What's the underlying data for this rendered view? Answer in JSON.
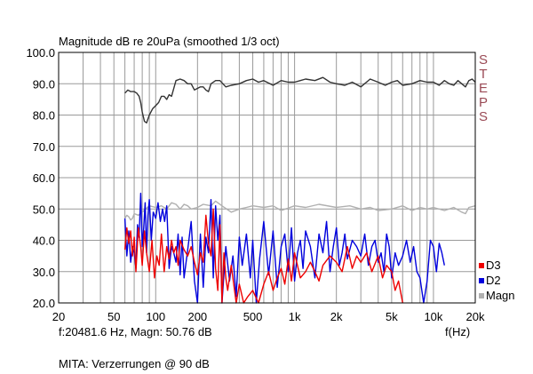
{
  "chart_data": {
    "type": "line",
    "title": "Magnitude dB re 20uPa (smoothed  1/3 oct)",
    "xlabel": "f(Hz)",
    "xscale": "log",
    "xlim": [
      20,
      20000
    ],
    "ylim": [
      20,
      100
    ],
    "grid": true,
    "x_ticks": [
      {
        "value": 20,
        "label": "20"
      },
      {
        "value": 50,
        "label": "50"
      },
      {
        "value": 100,
        "label": "100"
      },
      {
        "value": 200,
        "label": "200"
      },
      {
        "value": 500,
        "label": "500"
      },
      {
        "value": 1000,
        "label": "1k"
      },
      {
        "value": 2000,
        "label": "2k"
      },
      {
        "value": 5000,
        "label": "5k"
      },
      {
        "value": 10000,
        "label": "10k"
      },
      {
        "value": 20000,
        "label": "20k"
      }
    ],
    "y_ticks": [
      {
        "value": 100,
        "label": "100.0"
      },
      {
        "value": 90,
        "label": "90.0"
      },
      {
        "value": 80,
        "label": "80.0"
      },
      {
        "value": 70,
        "label": "70.0"
      },
      {
        "value": 60,
        "label": "60.0"
      },
      {
        "value": 50,
        "label": "50.0"
      },
      {
        "value": 40,
        "label": "40.0"
      },
      {
        "value": 30,
        "label": "30.0"
      },
      {
        "value": 20,
        "label": "20.0"
      }
    ],
    "legend_position": "right-bottom",
    "series": [
      {
        "name": "Magnitude",
        "color": "#333333",
        "x": [
          60,
          63,
          66,
          70,
          73,
          76,
          78,
          80,
          83,
          86,
          90,
          95,
          100,
          105,
          110,
          115,
          120,
          125,
          130,
          140,
          150,
          160,
          170,
          180,
          190,
          200,
          210,
          220,
          230,
          240,
          250,
          270,
          290,
          320,
          350,
          400,
          450,
          500,
          550,
          600,
          700,
          800,
          900,
          1000,
          1100,
          1200,
          1400,
          1600,
          1800,
          2000,
          2300,
          2600,
          3000,
          3500,
          4000,
          4500,
          5000,
          5500,
          6000,
          7000,
          8000,
          9000,
          10000,
          11000,
          12000,
          13000,
          14000,
          15000,
          16000,
          17000,
          18000,
          19000,
          20000
        ],
        "values": [
          87,
          88,
          87.5,
          87.5,
          87,
          86,
          84,
          81,
          78,
          77.5,
          80,
          82,
          83,
          84,
          86,
          86,
          85,
          86.5,
          86,
          91,
          91.5,
          91,
          90,
          90,
          88,
          88.5,
          89,
          89,
          88,
          87.5,
          90,
          91,
          91,
          89,
          89.5,
          90,
          91,
          91.5,
          90.5,
          91,
          89.5,
          91,
          90.5,
          90.5,
          91,
          91.5,
          91,
          92,
          90.5,
          90,
          89.5,
          90.5,
          89,
          91.5,
          90.5,
          89.5,
          90.5,
          91,
          89.5,
          90,
          91,
          90.5,
          90.5,
          89.5,
          91,
          90,
          89.5,
          91,
          90,
          89,
          91,
          91.5,
          90.5
        ]
      },
      {
        "name": "Magn",
        "color": "#b0b0b0",
        "x": [
          60,
          62,
          64,
          66,
          68,
          70,
          75,
          80,
          90,
          100,
          110,
          120,
          130,
          140,
          150,
          160,
          170,
          180,
          200,
          220,
          250,
          270,
          300,
          350,
          400,
          450,
          500,
          600,
          700,
          800,
          1000,
          1200,
          1500,
          2000,
          2500,
          3000,
          3500,
          4000,
          5000,
          6000,
          7000,
          8000,
          9000,
          10000,
          12000,
          14000,
          16000,
          17000,
          18000,
          20000
        ],
        "values": [
          47,
          48,
          47.5,
          46.5,
          47,
          48.5,
          48,
          49,
          51,
          50.5,
          51,
          50,
          52,
          51.5,
          50,
          51.5,
          51,
          50,
          50.5,
          51.5,
          51,
          52.5,
          51,
          49,
          50,
          50.5,
          51,
          50.5,
          51,
          49.5,
          51,
          50.5,
          51.5,
          50.5,
          51,
          50,
          50.5,
          49.5,
          50,
          51,
          49.5,
          50.5,
          50,
          50.5,
          49.5,
          50.5,
          49,
          48.5,
          50.5,
          51
        ]
      },
      {
        "name": "D2",
        "color": "#0000dd",
        "x": [
          60,
          62,
          64,
          66,
          68,
          70,
          72,
          74,
          76,
          78,
          80,
          82,
          84,
          86,
          88,
          90,
          93,
          96,
          100,
          104,
          108,
          112,
          116,
          120,
          125,
          130,
          135,
          140,
          145,
          150,
          155,
          160,
          170,
          180,
          190,
          200,
          205,
          210,
          220,
          230,
          240,
          250,
          260,
          270,
          280,
          290,
          300,
          320,
          340,
          360,
          380,
          400,
          420,
          450,
          480,
          500,
          530,
          560,
          600,
          650,
          700,
          750,
          800,
          850,
          900,
          950,
          1000,
          1050,
          1100,
          1150,
          1200,
          1300,
          1400,
          1500,
          1600,
          1700,
          1800,
          1900,
          2000,
          2100,
          2200,
          2300,
          2400,
          2600,
          2800,
          3000,
          3200,
          3400,
          3600,
          3800,
          4000,
          4200,
          4400,
          4600,
          4800,
          5000,
          5300,
          5600,
          6000,
          6400,
          6800,
          7200,
          7600,
          8000,
          8500,
          9000,
          9500,
          10000,
          10500,
          11000,
          11500,
          12000
        ],
        "values": [
          47,
          35,
          43,
          33,
          38,
          36,
          31,
          45,
          41,
          55,
          38,
          44,
          52,
          36,
          48,
          53,
          40,
          49,
          47,
          52,
          46,
          50,
          46,
          51,
          31,
          38,
          36,
          33,
          42,
          29,
          41,
          28,
          37,
          46,
          27,
          20,
          32,
          42,
          25,
          41,
          36,
          53,
          28,
          51,
          40,
          48,
          20,
          38,
          27,
          35,
          22,
          41,
          32,
          42,
          28,
          40,
          20,
          34,
          46,
          29,
          43,
          25,
          38,
          42,
          30,
          44,
          27,
          36,
          40,
          31,
          43,
          38,
          28,
          42,
          36,
          46,
          30,
          38,
          44,
          32,
          36,
          42,
          34,
          40,
          38,
          35,
          42,
          32,
          38,
          40,
          33,
          36,
          30,
          42,
          38,
          28,
          36,
          32,
          35,
          40,
          33,
          38,
          30,
          28,
          20,
          27,
          40,
          38,
          30,
          39,
          36,
          32
        ]
      },
      {
        "name": "D3",
        "color": "#ee0000",
        "x": [
          60,
          62,
          64,
          66,
          68,
          70,
          72,
          75,
          78,
          80,
          83,
          86,
          90,
          94,
          98,
          102,
          106,
          110,
          115,
          120,
          125,
          130,
          135,
          140,
          145,
          150,
          160,
          170,
          180,
          190,
          200,
          210,
          220,
          230,
          240,
          250,
          260,
          270,
          280,
          290,
          300,
          310,
          320,
          330,
          350,
          380,
          400,
          430,
          460,
          500,
          550,
          600,
          650,
          700,
          750,
          800,
          850,
          900,
          950,
          1000,
          1100,
          1200,
          1300,
          1400,
          1500,
          1600,
          1800,
          2000,
          2200,
          2400,
          2600,
          2800,
          3000,
          3300,
          3600,
          4000,
          4300,
          4600,
          5000,
          5300,
          5600,
          6000
        ],
        "values": [
          37,
          44,
          39,
          43,
          35,
          41,
          30,
          44,
          38,
          32,
          43,
          36,
          30,
          40,
          28,
          35,
          32,
          42,
          30,
          38,
          34,
          40,
          36,
          38,
          32,
          40,
          37,
          35,
          38,
          33,
          29,
          36,
          33,
          48,
          39,
          35,
          50,
          31,
          24,
          45,
          20,
          36,
          28,
          24,
          32,
          20,
          26,
          20,
          22,
          24,
          20,
          26,
          30,
          24,
          28,
          31,
          26,
          34,
          27,
          36,
          28,
          30,
          33,
          30,
          27,
          32,
          35,
          33,
          30,
          38,
          31,
          35,
          33,
          36,
          30,
          35,
          28,
          32,
          30,
          24,
          27,
          20
        ]
      }
    ]
  },
  "legend": [
    {
      "key": "D3",
      "label": "D3",
      "color": "#ee0000"
    },
    {
      "key": "D2",
      "label": "D2",
      "color": "#0000dd"
    },
    {
      "key": "Magn",
      "label": "Magn",
      "color": "#b0b0b0"
    }
  ],
  "cursor_readout": "f:20481.6 Hz, Magn: 50.76 dB",
  "footer": "MITA: Verzerrungen @ 90 dB",
  "brand_letters": [
    "S",
    "T",
    "E",
    "P",
    "S"
  ]
}
